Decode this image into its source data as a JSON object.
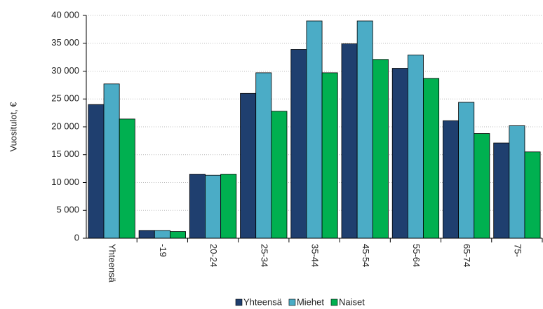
{
  "chart_data": {
    "type": "bar",
    "y_label": "Vuositulot, €",
    "categories": [
      "Yhteensä",
      "-19",
      "20-24",
      "25-34",
      "35-44",
      "45-54",
      "55-64",
      "65-74",
      "75-"
    ],
    "series": [
      {
        "name": "Yhteensä",
        "color": "#1f3f6f",
        "values": [
          24000,
          1400,
          11500,
          26000,
          33900,
          34900,
          30500,
          21100,
          17100
        ]
      },
      {
        "name": "Miehet",
        "color": "#4bacc6",
        "values": [
          27700,
          1400,
          11300,
          29700,
          39000,
          39000,
          32900,
          24400,
          20200
        ]
      },
      {
        "name": "Naiset",
        "color": "#00b050",
        "values": [
          21400,
          1200,
          11500,
          22800,
          29700,
          32100,
          28700,
          18800,
          15500
        ]
      }
    ],
    "ylim": [
      0,
      40000
    ],
    "yticks": [
      0,
      {
        "value": 5000,
        "label": "5 000"
      },
      {
        "value": 10000,
        "label": "10 000"
      },
      {
        "value": 15000,
        "label": "15 000"
      },
      {
        "value": 20000,
        "label": "20 000"
      },
      {
        "value": 25000,
        "label": "25 000"
      },
      {
        "value": 30000,
        "label": "30 000"
      },
      {
        "value": 35000,
        "label": "35 000"
      },
      {
        "value": 40000,
        "label": "40 000"
      }
    ],
    "grid": true,
    "legend": "bottom"
  }
}
